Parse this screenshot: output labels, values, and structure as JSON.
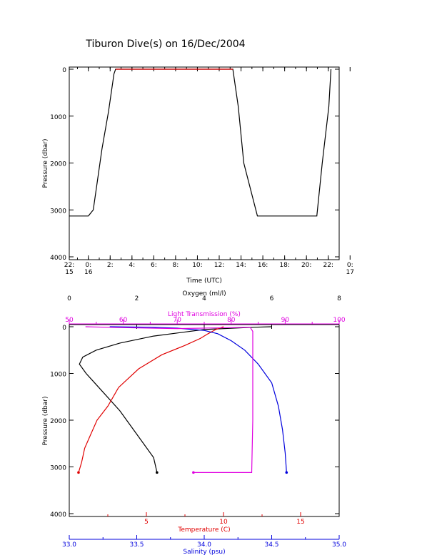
{
  "title": "Tiburon Dive(s) on 16/Dec/2004",
  "colors": {
    "black": "#000000",
    "red": "#e00000",
    "blue": "#0000dd",
    "magenta": "#e000e0"
  },
  "chart_data": [
    {
      "type": "line",
      "title": "Tiburon Dive(s) on 16/Dec/2004",
      "xlabel": "Time (UTC)",
      "ylabel": "Pressure (dbar)",
      "x_units": "hours after 22:15 on 15/Dec/2004",
      "xlim": [
        0,
        24.75
      ],
      "ylim": [
        4000,
        0
      ],
      "yticks": [
        "0",
        "1000",
        "2000",
        "3000",
        "4000"
      ],
      "xticks": [
        {
          "line1": "22:",
          "line2": "15"
        },
        {
          "line1": "0:",
          "line2": "16"
        },
        {
          "line1": "2:",
          "line2": ""
        },
        {
          "line1": "4:",
          "line2": ""
        },
        {
          "line1": "6:",
          "line2": ""
        },
        {
          "line1": "8:",
          "line2": ""
        },
        {
          "line1": "10:",
          "line2": ""
        },
        {
          "line1": "12:",
          "line2": ""
        },
        {
          "line1": "14:",
          "line2": ""
        },
        {
          "line1": "16:",
          "line2": ""
        },
        {
          "line1": "18:",
          "line2": ""
        },
        {
          "line1": "20:",
          "line2": ""
        },
        {
          "line1": "22:",
          "line2": ""
        },
        {
          "line1": "0:",
          "line2": "17"
        }
      ],
      "series": [
        {
          "color": "black",
          "x": [
            0.0,
            1.75,
            2.2,
            3.0,
            3.6,
            4.1,
            4.25,
            15.0,
            15.5,
            16.0,
            17.25,
            22.7,
            23.2,
            23.8,
            24.0
          ],
          "y": [
            3130,
            3130,
            3000,
            1700,
            900,
            100,
            0,
            0,
            800,
            2000,
            3130,
            3130,
            2000,
            800,
            0
          ]
        },
        {
          "color": "red",
          "x": [
            4.25,
            15.0
          ],
          "y": [
            0,
            0
          ]
        }
      ]
    },
    {
      "type": "line",
      "ylabel": "Pressure (dbar)",
      "ylim": [
        4000,
        0
      ],
      "yticks": [
        "0",
        "1000",
        "2000",
        "3000",
        "4000"
      ],
      "axes": {
        "oxygen": {
          "label": "Oxygen (ml/l)",
          "range": [
            0,
            8
          ],
          "ticks": [
            "0",
            "2",
            "4",
            "6",
            "8"
          ],
          "color": "black"
        },
        "light": {
          "label": "Light Transmission (%)",
          "range": [
            50,
            100
          ],
          "ticks": [
            "50",
            "60",
            "70",
            "80",
            "90",
            "100"
          ],
          "color": "magenta"
        },
        "temperature": {
          "label": "Temperature (C)",
          "range": [
            0,
            17.5
          ],
          "ticks": [
            "5",
            "10",
            "15"
          ],
          "color": "red"
        },
        "salinity": {
          "label": "Salinity (psu)",
          "range": [
            33.0,
            35.0
          ],
          "ticks": [
            "33.0",
            "33.5",
            "34.0",
            "34.5",
            "35.0"
          ],
          "color": "blue"
        }
      },
      "series": [
        {
          "color": "black",
          "axis": "oxygen",
          "x": [
            6.0,
            5.5,
            4.0,
            2.5,
            1.5,
            0.8,
            0.4,
            0.3,
            0.5,
            1.0,
            1.5,
            2.0,
            2.5,
            2.6
          ],
          "y": [
            0,
            10,
            60,
            200,
            350,
            500,
            650,
            800,
            1000,
            1400,
            1800,
            2300,
            2800,
            3120
          ]
        },
        {
          "color": "red",
          "axis": "temperature",
          "x": [
            10.0,
            9.5,
            9.0,
            8.5,
            7.5,
            6.0,
            4.5,
            3.2,
            2.5,
            1.8,
            1.4,
            1.0,
            0.8,
            0.6
          ],
          "y": [
            0,
            60,
            150,
            250,
            400,
            600,
            900,
            1300,
            1700,
            2000,
            2300,
            2600,
            2900,
            3120
          ]
        },
        {
          "color": "blue",
          "axis": "salinity",
          "x": [
            33.3,
            33.6,
            33.8,
            34.0,
            34.1,
            34.2,
            34.3,
            34.4,
            34.5,
            34.55,
            34.58,
            34.6,
            34.61
          ],
          "y": [
            0,
            10,
            30,
            80,
            150,
            300,
            500,
            800,
            1200,
            1700,
            2200,
            2700,
            3120
          ]
        },
        {
          "color": "magenta",
          "axis": "light",
          "x": [
            53,
            60,
            70,
            80,
            83.5,
            84.0,
            84.0,
            84.0,
            83.8,
            73
          ],
          "y": [
            0,
            20,
            40,
            20,
            10,
            100,
            1000,
            2000,
            3120,
            3120
          ]
        }
      ]
    }
  ]
}
